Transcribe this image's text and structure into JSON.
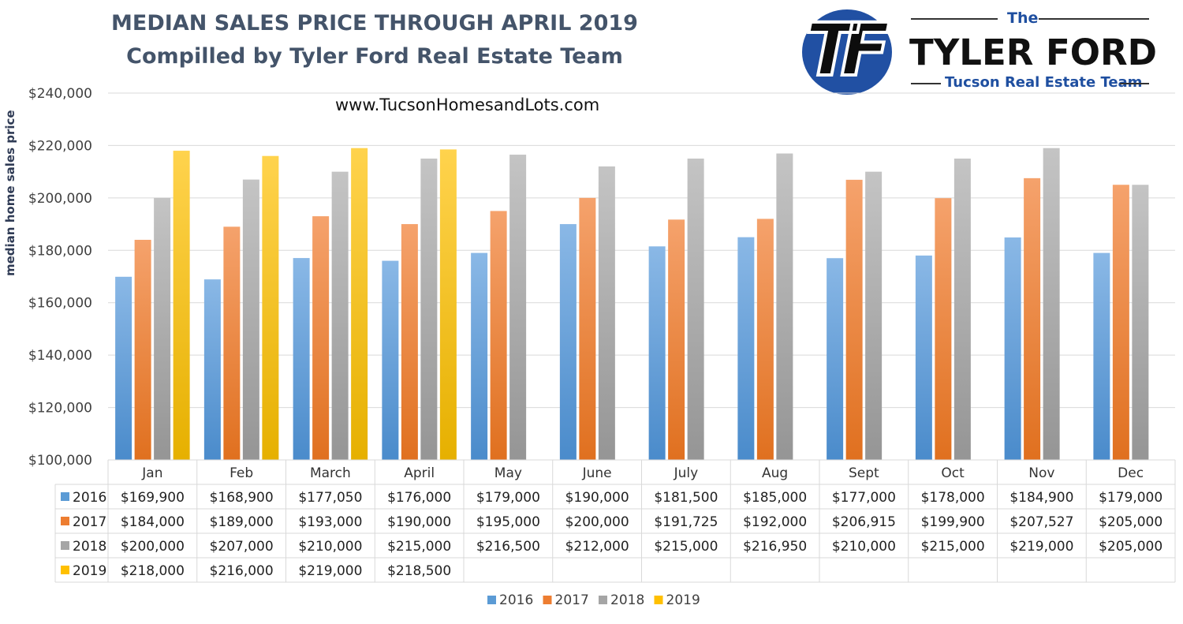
{
  "header": {
    "title_line1": "MEDIAN SALES PRICE THROUGH APRIL 2019",
    "title_line2": "Compilled by Tyler Ford Real Estate Team",
    "website": "www.TucsonHomesandLots.com"
  },
  "logo": {
    "monogram": "TF",
    "the": "The",
    "name": "TYLER FORD",
    "team": "Tucson Real Estate Team"
  },
  "colors": {
    "2016": "#5b9bd5",
    "2017": "#ed7d31",
    "2018": "#a5a5a5",
    "2019": "#ffc000",
    "title": "#44546a",
    "logo_blue": "#2150a3"
  },
  "chart_data": {
    "type": "bar",
    "ylabel": "median home sales price",
    "ylim": [
      100000,
      240000
    ],
    "ytick_step": 20000,
    "ytick_labels": [
      "$100,000",
      "$120,000",
      "$140,000",
      "$160,000",
      "$180,000",
      "$200,000",
      "$220,000",
      "$240,000"
    ],
    "grid": true,
    "legend_position": "bottom",
    "data_table": true,
    "categories": [
      "Jan",
      "Feb",
      "March",
      "April",
      "May",
      "June",
      "July",
      "Aug",
      "Sept",
      "Oct",
      "Nov",
      "Dec"
    ],
    "series": [
      {
        "name": "2016",
        "values": [
          169900,
          168900,
          177050,
          176000,
          179000,
          190000,
          181500,
          185000,
          177000,
          178000,
          184900,
          179000
        ],
        "labels": [
          "$169,900",
          "$168,900",
          "$177,050",
          "$176,000",
          "$179,000",
          "$190,000",
          "$181,500",
          "$185,000",
          "$177,000",
          "$178,000",
          "$184,900",
          "$179,000"
        ]
      },
      {
        "name": "2017",
        "values": [
          184000,
          189000,
          193000,
          190000,
          195000,
          200000,
          191725,
          192000,
          206915,
          199900,
          207527,
          205000
        ],
        "labels": [
          "$184,000",
          "$189,000",
          "$193,000",
          "$190,000",
          "$195,000",
          "$200,000",
          "$191,725",
          "$192,000",
          "$206,915",
          "$199,900",
          "$207,527",
          "$205,000"
        ]
      },
      {
        "name": "2018",
        "values": [
          200000,
          207000,
          210000,
          215000,
          216500,
          212000,
          215000,
          216950,
          210000,
          215000,
          219000,
          205000
        ],
        "labels": [
          "$200,000",
          "$207,000",
          "$210,000",
          "$215,000",
          "$216,500",
          "$212,000",
          "$215,000",
          "$216,950",
          "$210,000",
          "$215,000",
          "$219,000",
          "$205,000"
        ]
      },
      {
        "name": "2019",
        "values": [
          218000,
          216000,
          219000,
          218500,
          null,
          null,
          null,
          null,
          null,
          null,
          null,
          null
        ],
        "labels": [
          "$218,000",
          "$216,000",
          "$219,000",
          "$218,500",
          "",
          "",
          "",
          "",
          "",
          "",
          "",
          ""
        ]
      }
    ]
  }
}
